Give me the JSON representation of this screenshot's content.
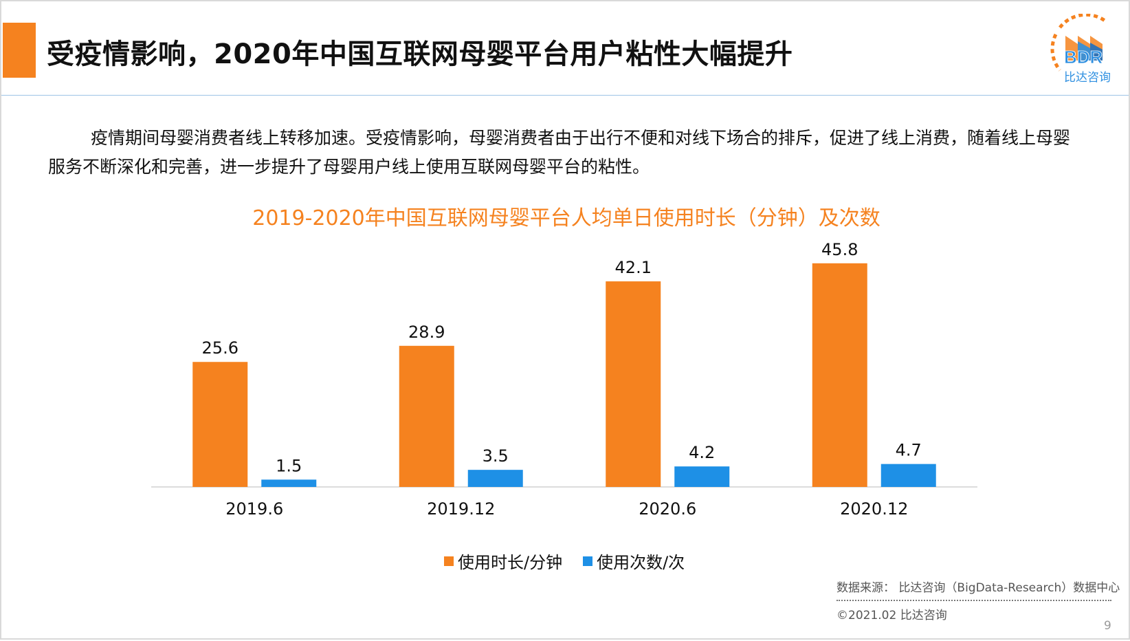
{
  "header": {
    "title": "受疫情影响，2020年中国互联网母婴平台用户粘性大幅提升",
    "accent_color": "#f5821f"
  },
  "logo": {
    "text": "BDR",
    "subtext": "比达咨询"
  },
  "intro_text": "疫情期间母婴消费者线上转移加速。受疫情影响，母婴消费者由于出行不便和对线下场合的排斥，促进了线上消费，随着线上母婴服务不断深化和完善，进一步提升了母婴用户线上使用互联网母婴平台的粘性。",
  "chart_data": {
    "type": "bar",
    "title": "2019-2020年中国互联网母婴平台人均单日使用时长（分钟）及次数",
    "categories": [
      "2019.6",
      "2019.12",
      "2020.6",
      "2020.12"
    ],
    "series": [
      {
        "name": "使用时长/分钟",
        "color": "#f5821f",
        "values": [
          25.6,
          28.9,
          42.1,
          45.8
        ]
      },
      {
        "name": "使用次数/次",
        "color": "#1e90e6",
        "values": [
          1.5,
          3.5,
          4.2,
          4.7
        ]
      }
    ],
    "data_labels": [
      [
        "25.6",
        "28.9",
        "42.1",
        "45.8"
      ],
      [
        "1.5",
        "3.5",
        "4.2",
        "4.7"
      ]
    ],
    "legend_position": "bottom",
    "grid": false
  },
  "footer": {
    "source": "数据来源： 比达咨询（BigData-Research）数据中心",
    "copyright": "©2021.02  比达咨询",
    "page": "9"
  }
}
